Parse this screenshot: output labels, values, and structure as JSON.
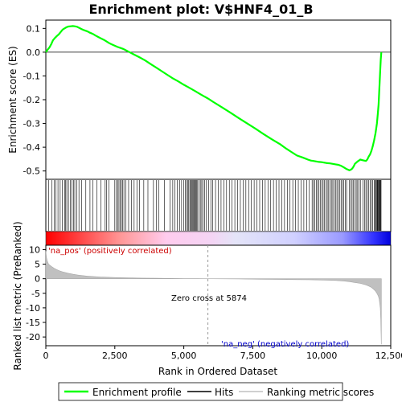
{
  "chart_data": {
    "type": "line",
    "title": "Enrichment plot: V$HNF4_01_B",
    "top_panel": {
      "ylabel": "Enrichment score (ES)",
      "ylim": [
        -0.535,
        0.135
      ],
      "yticks": [
        0.1,
        0.0,
        -0.1,
        -0.2,
        -0.3,
        -0.4,
        -0.5
      ],
      "ytick_labels": [
        "0.1",
        "0.0",
        "-0.1",
        "-0.2",
        "-0.3",
        "-0.4",
        "-0.5"
      ],
      "series": [
        {
          "name": "Enrichment profile",
          "color": "#00ff00",
          "x": [
            0,
            60,
            130,
            200,
            260,
            330,
            400,
            470,
            540,
            610,
            680,
            750,
            820,
            900,
            980,
            1050,
            1130,
            1200,
            1300,
            1400,
            1500,
            1600,
            1700,
            1800,
            1900,
            2000,
            2100,
            2200,
            2300,
            2400,
            2500,
            2600,
            2700,
            2800,
            2900,
            3000,
            3200,
            3400,
            3600,
            3800,
            4000,
            4200,
            4400,
            4600,
            4800,
            5000,
            5200,
            5400,
            5600,
            5874,
            6100,
            6400,
            6700,
            7000,
            7300,
            7600,
            7900,
            8200,
            8500,
            8700,
            8900,
            9100,
            9300,
            9500,
            9600,
            9700,
            9800,
            9900,
            10000,
            10100,
            10200,
            10300,
            10400,
            10500,
            10600,
            10700,
            10800,
            10900,
            11000,
            11050,
            11100,
            11150,
            11200,
            11300,
            11400,
            11500,
            11600,
            11650,
            11700,
            11750,
            11800,
            11850,
            11900,
            11950,
            12000,
            12030,
            12060,
            12080,
            12100,
            12120,
            12140,
            12160
          ],
          "y": [
            0.0,
            0.01,
            0.02,
            0.035,
            0.05,
            0.06,
            0.068,
            0.075,
            0.085,
            0.095,
            0.1,
            0.105,
            0.108,
            0.109,
            0.11,
            0.109,
            0.107,
            0.103,
            0.097,
            0.092,
            0.088,
            0.082,
            0.077,
            0.07,
            0.064,
            0.058,
            0.052,
            0.045,
            0.038,
            0.032,
            0.027,
            0.022,
            0.018,
            0.014,
            0.008,
            0.002,
            -0.01,
            -0.022,
            -0.035,
            -0.05,
            -0.065,
            -0.08,
            -0.095,
            -0.11,
            -0.123,
            -0.137,
            -0.15,
            -0.163,
            -0.177,
            -0.195,
            -0.212,
            -0.233,
            -0.255,
            -0.278,
            -0.3,
            -0.322,
            -0.345,
            -0.367,
            -0.388,
            -0.405,
            -0.42,
            -0.435,
            -0.443,
            -0.452,
            -0.456,
            -0.458,
            -0.46,
            -0.462,
            -0.463,
            -0.465,
            -0.467,
            -0.468,
            -0.47,
            -0.472,
            -0.474,
            -0.478,
            -0.485,
            -0.492,
            -0.497,
            -0.495,
            -0.49,
            -0.482,
            -0.47,
            -0.46,
            -0.452,
            -0.455,
            -0.458,
            -0.452,
            -0.44,
            -0.43,
            -0.415,
            -0.395,
            -0.37,
            -0.34,
            -0.3,
            -0.26,
            -0.22,
            -0.17,
            -0.12,
            -0.07,
            -0.03,
            0.0
          ]
        }
      ]
    },
    "hits_panel": {
      "label": "Hits",
      "hit_positions": [
        100,
        220,
        300,
        370,
        440,
        520,
        600,
        680,
        720,
        760,
        820,
        890,
        940,
        1000,
        1050,
        1120,
        1200,
        1300,
        1450,
        1600,
        1700,
        1850,
        2000,
        2150,
        2200,
        2280,
        2500,
        2560,
        2600,
        2650,
        2700,
        2740,
        2780,
        2830,
        2900,
        3000,
        3100,
        3200,
        3300,
        3400,
        3550,
        3700,
        3900,
        4000,
        4100,
        4300,
        4500,
        4600,
        4680,
        4760,
        4850,
        4920,
        5000,
        5050,
        5100,
        5150,
        5180,
        5220,
        5250,
        5280,
        5310,
        5340,
        5370,
        5400,
        5430,
        5460,
        5500,
        5550,
        5600,
        5650,
        5700,
        5760,
        5820,
        5900,
        5980,
        6050,
        6150,
        6250,
        6350,
        6450,
        6550,
        6650,
        6750,
        6850,
        6950,
        7050,
        7150,
        7250,
        7350,
        7450,
        7550,
        7650,
        7750,
        7850,
        7950,
        8050,
        8150,
        8250,
        8350,
        8450,
        8550,
        8650,
        8750,
        8850,
        8950,
        9050,
        9150,
        9250,
        9350,
        9450,
        9550,
        9650,
        9700,
        9750,
        9800,
        9850,
        9900,
        9950,
        10000,
        10050,
        10100,
        10150,
        10200,
        10250,
        10300,
        10350,
        10400,
        10450,
        10500,
        10550,
        10600,
        10650,
        10700,
        10750,
        10800,
        10850,
        10900,
        11000,
        11050,
        11100,
        11150,
        11200,
        11250,
        11300,
        11350,
        11400,
        11500,
        11550,
        11600,
        11650,
        11700,
        11750,
        11800,
        11850,
        11900,
        11930,
        11960,
        11990,
        12010,
        12030,
        12050,
        12070,
        12090,
        12110,
        12130,
        12150
      ]
    },
    "bottom_panel": {
      "ylabel": "Ranked list metric (PreRanked)",
      "xlabel": "Rank in Ordered Dataset",
      "xlim": [
        0,
        12500
      ],
      "ylim": [
        -23,
        11.5
      ],
      "xticks": [
        0,
        2500,
        5000,
        7500,
        10000,
        12500
      ],
      "xtick_labels": [
        "0",
        "2,500",
        "5,000",
        "7,500",
        "10,000",
        "12,500"
      ],
      "yticks": [
        10,
        5,
        0,
        -5,
        -10,
        -15,
        -20
      ],
      "ytick_labels": [
        "10",
        "5",
        "0",
        "-5",
        "-10",
        "-15",
        "-20"
      ],
      "zero_cross": 5874,
      "metric_x": [
        0,
        20,
        50,
        100,
        200,
        300,
        400,
        500,
        600,
        800,
        1000,
        1200,
        1500,
        2000,
        2500,
        3000,
        3500,
        4000,
        4500,
        5000,
        5500,
        5874,
        6500,
        7000,
        7500,
        8000,
        8500,
        9000,
        9500,
        10000,
        10500,
        10800,
        11000,
        11200,
        11400,
        11600,
        11700,
        11800,
        11900,
        11950,
        12000,
        12050,
        12080,
        12100,
        12120,
        12140,
        12160
      ],
      "metric_y": [
        9.5,
        7.5,
        6.2,
        5.0,
        4.2,
        3.6,
        3.1,
        2.7,
        2.4,
        1.9,
        1.5,
        1.2,
        0.9,
        0.6,
        0.4,
        0.3,
        0.2,
        0.15,
        0.1,
        0.05,
        0.02,
        0.0,
        -0.05,
        -0.1,
        -0.15,
        -0.2,
        -0.25,
        -0.3,
        -0.35,
        -0.45,
        -0.6,
        -0.8,
        -1.0,
        -1.3,
        -1.6,
        -2.1,
        -2.5,
        -3.0,
        -3.8,
        -4.3,
        -5.0,
        -6.0,
        -7.0,
        -8.5,
        -10.0,
        -14.0,
        -22.5
      ]
    },
    "annotations": {
      "pos_label": "'na_pos' (positively correlated)",
      "neg_label": "'na_neg' (negatively correlated)",
      "zero_cross_label": "Zero cross at 5874"
    },
    "legend": {
      "position": "bottom",
      "entries": [
        {
          "label": "Enrichment profile",
          "color": "#00ff00"
        },
        {
          "label": "Hits",
          "color": "#000000"
        },
        {
          "label": "Ranking metric scores",
          "color": "#c0c0c0"
        }
      ]
    }
  }
}
